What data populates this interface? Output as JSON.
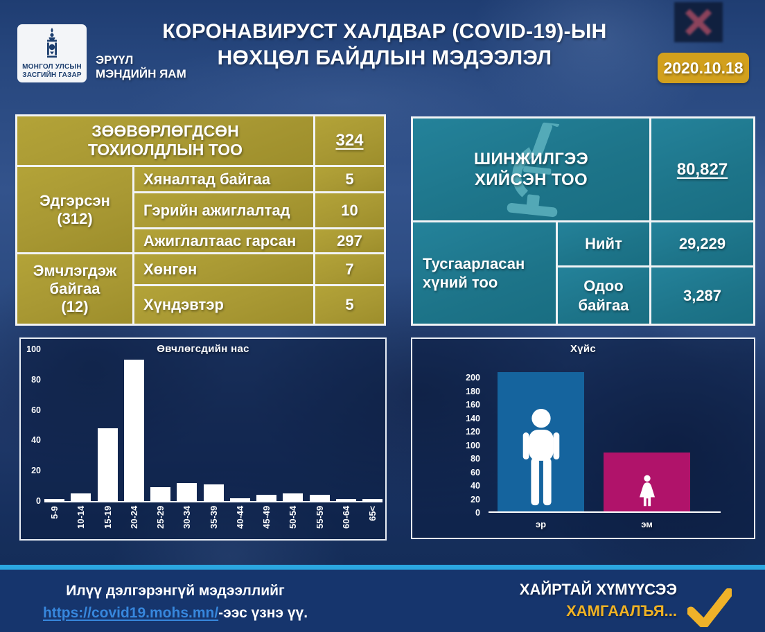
{
  "header": {
    "org": "МОНГОЛ УЛСЫН\nЗАСГИЙН ГАЗАР",
    "ministry": "ЭРҮҮЛ\nМЭНДИЙН ЯАМ",
    "title": "КОРОНАВИРУСТ ХАЛДВАР (COVID-19)-ЫН\nНӨХЦӨЛ БАЙДЛЫН МЭДЭЭЛЭЛ",
    "date": "2020.10.18"
  },
  "cases_table": {
    "title": "ЗӨӨВӨРЛӨГДСӨН\nТОХИОЛДЛЫН ТОО",
    "total": "324",
    "group1": {
      "label": "Эдгэрсэн\n(312)",
      "rows": [
        {
          "label": "Хяналтад байгаа",
          "value": "5"
        },
        {
          "label": "Гэрийн ажиглалтад",
          "value": "10"
        },
        {
          "label": "Ажиглалтаас гарсан",
          "value": "297"
        }
      ]
    },
    "group2": {
      "label": "Эмчлэгдэж\nбайгаа\n(12)",
      "rows": [
        {
          "label": "Хөнгөн",
          "value": "7"
        },
        {
          "label": "Хүндэвтэр",
          "value": "5"
        }
      ]
    }
  },
  "tests_table": {
    "tests_label": "ШИНЖИЛГЭЭ\nХИЙСЭН ТОО",
    "tests_value": "80,827",
    "isolation_label": "Тусгаарласан\nхүний тоо",
    "total_label": "Нийт",
    "total_value": "29,229",
    "current_label": "Одоо\nбайгаа",
    "current_value": "3,287"
  },
  "chart_data": [
    {
      "type": "bar",
      "title": "Өвчлөгсдийн нас",
      "categories": [
        "5-9",
        "10-14",
        "15-19",
        "20-24",
        "25-29",
        "30-34",
        "35-39",
        "40-44",
        "45-49",
        "50-54",
        "55-59",
        "60-64",
        "65<"
      ],
      "values": [
        1,
        5,
        48,
        93,
        9,
        12,
        11,
        2,
        4,
        5,
        4,
        1,
        1
      ],
      "ylim": [
        0,
        100
      ],
      "yticks": [
        100,
        80,
        60,
        40,
        20,
        0
      ],
      "bar_color": "#ffffff",
      "grid": false,
      "legend": "none"
    },
    {
      "type": "bar",
      "title": "Хүйс",
      "categories": [
        "эр",
        "эм"
      ],
      "values": [
        206,
        87
      ],
      "ylim": [
        0,
        200
      ],
      "yticks": [
        200,
        180,
        160,
        140,
        120,
        100,
        80,
        60,
        40,
        20,
        0
      ],
      "series_colors": [
        "#15649e",
        "#b0136a"
      ],
      "grid": false,
      "legend": "none"
    }
  ],
  "footer": {
    "info_line": "Илүү дэлгэрэнгүй мэдээллийг",
    "link": "https://covid19.mohs.mn/",
    "link_suffix": "-ээс үзнэ үү.",
    "slogan_line1": "ХАЙРТАЙ ХҮМҮҮСЭЭ",
    "slogan_line2": "ХАМГААЛЪЯ..."
  },
  "colors": {
    "gold_panel": "#ab9b31",
    "teal_panel": "#1f7e93",
    "date_badge": "#d2a01d",
    "accent_cyan": "#2ba7e0",
    "footer_bg": "#16356d",
    "link_blue": "#3787dd",
    "male_bar": "#15649e",
    "female_bar": "#b0136a",
    "check_yellow": "#f0b224",
    "white_bar": "#ffffff"
  }
}
